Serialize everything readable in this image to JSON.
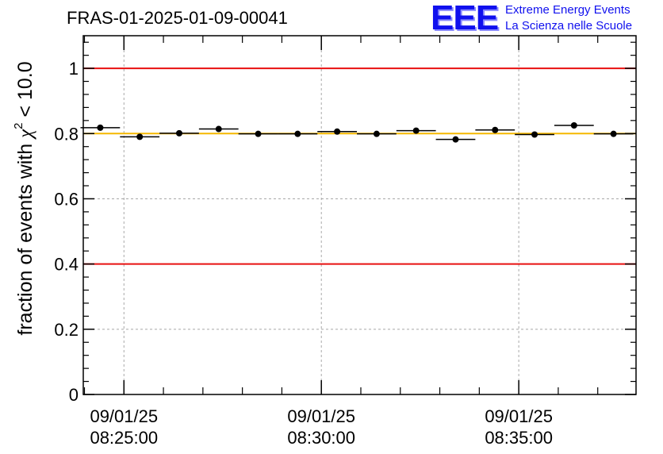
{
  "header": {
    "title": "FRAS-01-2025-01-09-00041",
    "logo_mark": "EEE",
    "logo_line1": "Extreme Energy Events",
    "logo_line2": "La Scienza nelle Scuole"
  },
  "chart_data": {
    "type": "scatter",
    "title": "FRAS-01-2025-01-09-00041",
    "xlabel": "",
    "ylabel": "fraction of events with χ² < 10.0",
    "ylabel_parts": {
      "prefix": "fraction of events with ",
      "symbol": "χ",
      "superscript": "2",
      "suffix": " < 10.0"
    },
    "xlim_minutes": [
      23.97,
      37.97
    ],
    "ylim": [
      0,
      1.1
    ],
    "y_ticks": [
      0,
      0.2,
      0.4,
      0.6,
      0.8,
      1
    ],
    "y_tick_labels": [
      "0",
      "0.2",
      "0.4",
      "0.6",
      "0.8",
      "1"
    ],
    "x_ticks": [
      {
        "minute": 25,
        "date": "09/01/25",
        "time": "08:25:00"
      },
      {
        "minute": 30,
        "date": "09/01/25",
        "time": "08:30:00"
      },
      {
        "minute": 35,
        "date": "09/01/25",
        "time": "08:35:00"
      }
    ],
    "x_minor_ticks_minutes": [
      24,
      26,
      27,
      28,
      29,
      31,
      32,
      33,
      34,
      36,
      37
    ],
    "grid": true,
    "bin_width_minutes": 1,
    "points": [
      {
        "x": 24.4,
        "y": 0.818
      },
      {
        "x": 25.4,
        "y": 0.79
      },
      {
        "x": 26.4,
        "y": 0.801
      },
      {
        "x": 27.4,
        "y": 0.814
      },
      {
        "x": 28.4,
        "y": 0.799
      },
      {
        "x": 29.4,
        "y": 0.799
      },
      {
        "x": 30.4,
        "y": 0.806
      },
      {
        "x": 31.4,
        "y": 0.799
      },
      {
        "x": 32.4,
        "y": 0.809
      },
      {
        "x": 33.4,
        "y": 0.782
      },
      {
        "x": 34.4,
        "y": 0.811
      },
      {
        "x": 35.4,
        "y": 0.797
      },
      {
        "x": 36.4,
        "y": 0.825
      },
      {
        "x": 37.4,
        "y": 0.799
      }
    ],
    "reference_lines": [
      {
        "y": 1.0,
        "color": "#e81010"
      },
      {
        "y": 0.8,
        "color": "#f5b800"
      },
      {
        "y": 0.4,
        "color": "#e81010"
      }
    ],
    "colors": {
      "axis": "#000000",
      "grid": "#a8a8a8",
      "marker": "#000000"
    }
  }
}
